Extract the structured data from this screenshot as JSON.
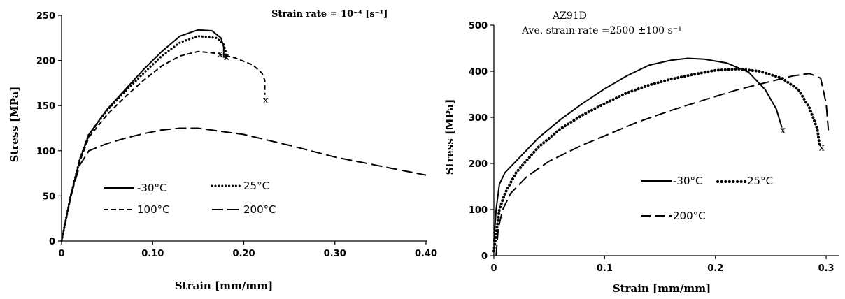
{
  "chart_data": [
    {
      "type": "line",
      "title": "",
      "xlabel": "Strain [mm/mm]",
      "ylabel": "Stress [MPa]",
      "xlim": [
        0,
        0.4
      ],
      "ylim": [
        0,
        250
      ],
      "xticks": [
        "0",
        "0.10",
        "0.20",
        "0.30",
        "0.40"
      ],
      "yticks": [
        "0",
        "50",
        "100",
        "150",
        "200",
        "250"
      ],
      "annotation": "Strain rate = 10⁻⁴ [s⁻¹]",
      "grid": false,
      "legend": "lower-left",
      "fracture_marks": [
        {
          "x": 0.174,
          "y": 204,
          "label": "x"
        },
        {
          "x": 0.181,
          "y": 201,
          "label": "x"
        },
        {
          "x": 0.224,
          "y": 153,
          "label": "x"
        }
      ],
      "series": [
        {
          "name": "-30°C",
          "style": "solid",
          "x": [
            0,
            0.01,
            0.02,
            0.03,
            0.05,
            0.07,
            0.09,
            0.11,
            0.13,
            0.15,
            0.165,
            0.175,
            0.178,
            0.178
          ],
          "y": [
            0,
            50,
            90,
            118,
            146,
            168,
            190,
            210,
            227,
            234,
            233,
            225,
            215,
            203
          ]
        },
        {
          "name": "25°C",
          "style": "dotted",
          "x": [
            0,
            0.01,
            0.02,
            0.03,
            0.05,
            0.07,
            0.09,
            0.11,
            0.13,
            0.15,
            0.17,
            0.178,
            0.18,
            0.18
          ],
          "y": [
            0,
            50,
            90,
            118,
            145,
            166,
            186,
            205,
            220,
            227,
            225,
            218,
            210,
            200
          ]
        },
        {
          "name": "100°C",
          "style": "dashed",
          "x": [
            0,
            0.01,
            0.02,
            0.03,
            0.05,
            0.07,
            0.09,
            0.11,
            0.13,
            0.15,
            0.17,
            0.19,
            0.21,
            0.22,
            0.223,
            0.223
          ],
          "y": [
            0,
            48,
            88,
            115,
            140,
            160,
            178,
            194,
            205,
            210,
            208,
            203,
            195,
            186,
            178,
            162
          ]
        },
        {
          "name": "200°C",
          "style": "longdash",
          "x": [
            0,
            0.01,
            0.02,
            0.03,
            0.05,
            0.07,
            0.09,
            0.11,
            0.13,
            0.15,
            0.2,
            0.25,
            0.3,
            0.35,
            0.4
          ],
          "y": [
            0,
            50,
            84,
            100,
            108,
            114,
            119,
            123,
            125,
            125,
            118,
            106,
            93,
            83,
            73
          ]
        }
      ]
    },
    {
      "type": "line",
      "title": "AZ91D",
      "subtitle": "Ave. strain rate =2500 ±100 s⁻¹",
      "xlabel": "Strain [mm/mm]",
      "ylabel": "Stress [MPa]",
      "xlim": [
        0,
        0.305
      ],
      "ylim": [
        0,
        500
      ],
      "xticks": [
        {
          "v": 0,
          "t": "0"
        },
        {
          "v": 0.1,
          "t": "0.1"
        },
        {
          "v": 0.2,
          "t": "0.2"
        },
        {
          "v": 0.3,
          "t": "0.3"
        }
      ],
      "yticks": [
        "0",
        "100",
        "200",
        "300",
        "400",
        "500"
      ],
      "grid": false,
      "legend": "lower-right",
      "fracture_marks": [
        {
          "x": 0.261,
          "y": 265,
          "label": "x"
        },
        {
          "x": 0.296,
          "y": 228,
          "label": "x"
        }
      ],
      "series": [
        {
          "name": "-30°C",
          "style": "solid",
          "x": [
            0,
            0.002,
            0.005,
            0.01,
            0.02,
            0.04,
            0.06,
            0.08,
            0.1,
            0.12,
            0.14,
            0.16,
            0.175,
            0.19,
            0.21,
            0.23,
            0.245,
            0.255,
            0.26
          ],
          "y": [
            30,
            100,
            155,
            180,
            205,
            255,
            295,
            330,
            362,
            390,
            413,
            424,
            428,
            426,
            418,
            398,
            360,
            318,
            278
          ]
        },
        {
          "name": "25°C",
          "style": "dotted",
          "x": [
            0,
            0.005,
            0.01,
            0.02,
            0.04,
            0.06,
            0.08,
            0.1,
            0.12,
            0.14,
            0.16,
            0.18,
            0.2,
            0.22,
            0.24,
            0.26,
            0.275,
            0.285,
            0.292,
            0.294
          ],
          "y": [
            10,
            100,
            135,
            180,
            235,
            275,
            305,
            330,
            353,
            370,
            383,
            393,
            402,
            405,
            400,
            385,
            360,
            320,
            275,
            240
          ]
        },
        {
          "name": "200°C",
          "style": "longdash",
          "x": [
            0.002,
            0.004,
            0.008,
            0.015,
            0.03,
            0.05,
            0.08,
            0.1,
            0.13,
            0.16,
            0.19,
            0.22,
            0.25,
            0.27,
            0.285,
            0.295,
            0.3,
            0.302
          ],
          "y": [
            0,
            60,
            100,
            135,
            172,
            205,
            240,
            260,
            290,
            315,
            338,
            360,
            378,
            390,
            395,
            385,
            330,
            272
          ]
        }
      ]
    }
  ]
}
